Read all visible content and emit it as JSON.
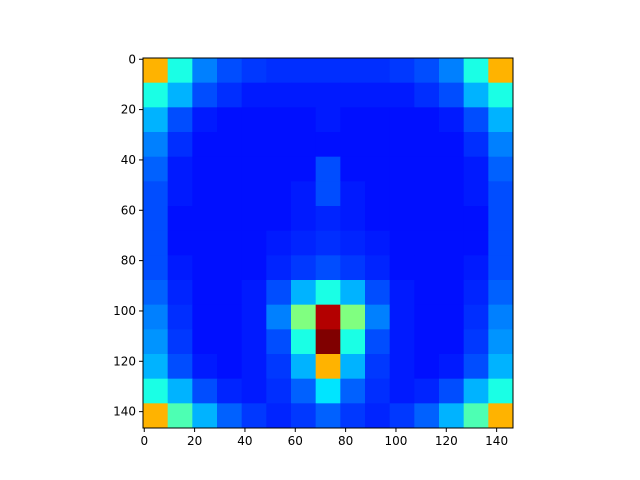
{
  "chart_data": {
    "type": "heatmap",
    "colormap": "jet",
    "clim": [
      0,
      1
    ],
    "xlim": [
      -0.5,
      146.5
    ],
    "ylim": [
      146.5,
      -0.5
    ],
    "xticks": [
      0,
      20,
      40,
      60,
      80,
      100,
      120,
      140
    ],
    "yticks": [
      0,
      20,
      40,
      60,
      80,
      100,
      120,
      140
    ],
    "z": [
      [
        0.7,
        0.4,
        0.25,
        0.2,
        0.18,
        0.17,
        0.17,
        0.17,
        0.17,
        0.17,
        0.18,
        0.2,
        0.25,
        0.4,
        0.7
      ],
      [
        0.4,
        0.3,
        0.2,
        0.17,
        0.15,
        0.15,
        0.15,
        0.15,
        0.15,
        0.15,
        0.15,
        0.17,
        0.2,
        0.3,
        0.4
      ],
      [
        0.3,
        0.2,
        0.15,
        0.14,
        0.14,
        0.14,
        0.14,
        0.15,
        0.14,
        0.14,
        0.14,
        0.14,
        0.15,
        0.2,
        0.3
      ],
      [
        0.25,
        0.17,
        0.14,
        0.14,
        0.14,
        0.14,
        0.14,
        0.14,
        0.14,
        0.14,
        0.14,
        0.14,
        0.14,
        0.17,
        0.25
      ],
      [
        0.22,
        0.15,
        0.14,
        0.14,
        0.14,
        0.14,
        0.14,
        0.2,
        0.14,
        0.14,
        0.14,
        0.14,
        0.14,
        0.15,
        0.22
      ],
      [
        0.2,
        0.15,
        0.14,
        0.14,
        0.14,
        0.14,
        0.15,
        0.2,
        0.15,
        0.14,
        0.14,
        0.14,
        0.14,
        0.15,
        0.2
      ],
      [
        0.2,
        0.14,
        0.14,
        0.14,
        0.14,
        0.14,
        0.15,
        0.16,
        0.15,
        0.14,
        0.14,
        0.14,
        0.14,
        0.14,
        0.2
      ],
      [
        0.2,
        0.14,
        0.14,
        0.14,
        0.14,
        0.15,
        0.16,
        0.17,
        0.16,
        0.15,
        0.14,
        0.14,
        0.14,
        0.14,
        0.2
      ],
      [
        0.2,
        0.15,
        0.14,
        0.14,
        0.14,
        0.16,
        0.18,
        0.2,
        0.18,
        0.16,
        0.14,
        0.14,
        0.14,
        0.15,
        0.2
      ],
      [
        0.22,
        0.16,
        0.14,
        0.14,
        0.15,
        0.2,
        0.3,
        0.4,
        0.3,
        0.2,
        0.15,
        0.14,
        0.14,
        0.16,
        0.22
      ],
      [
        0.25,
        0.17,
        0.14,
        0.14,
        0.15,
        0.25,
        0.5,
        0.95,
        0.5,
        0.25,
        0.15,
        0.14,
        0.14,
        0.17,
        0.25
      ],
      [
        0.27,
        0.18,
        0.14,
        0.14,
        0.15,
        0.2,
        0.4,
        1.0,
        0.4,
        0.2,
        0.15,
        0.14,
        0.14,
        0.18,
        0.27
      ],
      [
        0.3,
        0.2,
        0.15,
        0.14,
        0.15,
        0.18,
        0.3,
        0.7,
        0.3,
        0.18,
        0.15,
        0.14,
        0.15,
        0.2,
        0.3
      ],
      [
        0.4,
        0.3,
        0.2,
        0.16,
        0.15,
        0.17,
        0.22,
        0.35,
        0.22,
        0.17,
        0.15,
        0.16,
        0.2,
        0.3,
        0.4
      ],
      [
        0.7,
        0.45,
        0.3,
        0.22,
        0.18,
        0.16,
        0.18,
        0.22,
        0.18,
        0.16,
        0.18,
        0.22,
        0.3,
        0.45,
        0.7
      ]
    ]
  }
}
